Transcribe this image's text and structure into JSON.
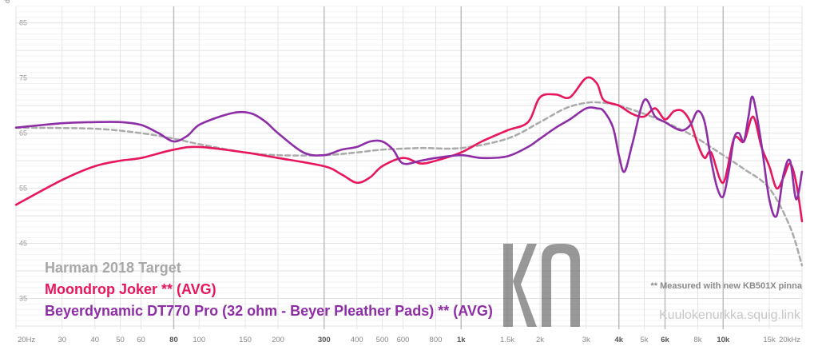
{
  "chart_data": {
    "type": "line",
    "ylabel": "dB",
    "ylim": [
      30,
      88
    ],
    "xlim": [
      20,
      20000
    ],
    "x_scale": "log",
    "y_ticks": [
      35,
      45,
      55,
      65,
      75,
      85
    ],
    "x_ticks": [
      {
        "v": 20,
        "label": "20Hz",
        "major": false
      },
      {
        "v": 30,
        "label": "30",
        "major": false
      },
      {
        "v": 40,
        "label": "40",
        "major": false
      },
      {
        "v": 50,
        "label": "50",
        "major": false
      },
      {
        "v": 60,
        "label": "60",
        "major": false
      },
      {
        "v": 80,
        "label": "80",
        "major": true
      },
      {
        "v": 100,
        "label": "100",
        "major": false
      },
      {
        "v": 150,
        "label": "150",
        "major": false
      },
      {
        "v": 200,
        "label": "200",
        "major": false
      },
      {
        "v": 300,
        "label": "300",
        "major": true
      },
      {
        "v": 400,
        "label": "400",
        "major": false
      },
      {
        "v": 500,
        "label": "500",
        "major": false
      },
      {
        "v": 600,
        "label": "600",
        "major": false
      },
      {
        "v": 800,
        "label": "800",
        "major": false
      },
      {
        "v": 1000,
        "label": "1k",
        "major": true
      },
      {
        "v": 1500,
        "label": "1.5k",
        "major": false
      },
      {
        "v": 2000,
        "label": "2k",
        "major": false
      },
      {
        "v": 3000,
        "label": "3k",
        "major": false
      },
      {
        "v": 4000,
        "label": "4k",
        "major": true
      },
      {
        "v": 5000,
        "label": "5k",
        "major": false
      },
      {
        "v": 6000,
        "label": "6k",
        "major": true
      },
      {
        "v": 8000,
        "label": "8k",
        "major": false
      },
      {
        "v": 10000,
        "label": "10k",
        "major": true
      },
      {
        "v": 15000,
        "label": "15k",
        "major": false
      },
      {
        "v": 20000,
        "label": "20kHz",
        "major": false
      }
    ],
    "series": [
      {
        "name": "Harman 2018 Target",
        "color": "#aaaaaa",
        "style": "dashed",
        "x": [
          20,
          40,
          60,
          80,
          100,
          150,
          200,
          300,
          400,
          500,
          700,
          1000,
          1500,
          2000,
          2500,
          3000,
          3500,
          4000,
          5000,
          6000,
          7000,
          8000,
          10000,
          12000,
          15000,
          18000,
          20000
        ],
        "y": [
          66.0,
          65.8,
          65.0,
          64.0,
          63.0,
          61.5,
          61.0,
          61.0,
          61.5,
          62.0,
          62.3,
          62.3,
          64.0,
          67.0,
          69.5,
          70.5,
          70.5,
          70.0,
          68.5,
          67.0,
          65.5,
          64.0,
          61.0,
          58.5,
          55.0,
          48.0,
          41.0
        ]
      },
      {
        "name": "Moondrop Joker ** (AVG)",
        "color": "#e8175d",
        "style": "solid",
        "x": [
          20,
          30,
          40,
          50,
          60,
          80,
          100,
          150,
          200,
          300,
          350,
          400,
          450,
          500,
          600,
          700,
          800,
          1000,
          1200,
          1500,
          1800,
          2000,
          2300,
          2600,
          3000,
          3300,
          3500,
          4000,
          4500,
          5000,
          5500,
          6000,
          6500,
          7000,
          7500,
          8000,
          8500,
          9000,
          10000,
          11000,
          12000,
          13000,
          14000,
          15000,
          16000,
          17000,
          18000,
          19000,
          20000
        ],
        "y": [
          52.0,
          56.5,
          59.0,
          60.0,
          60.5,
          62.0,
          62.5,
          61.5,
          60.5,
          59.0,
          57.5,
          56.0,
          57.0,
          59.0,
          60.5,
          59.5,
          60.0,
          61.5,
          63.5,
          65.5,
          67.0,
          71.5,
          72.0,
          71.5,
          75.0,
          74.0,
          71.0,
          70.0,
          68.5,
          68.0,
          69.5,
          67.5,
          69.0,
          69.0,
          67.0,
          63.0,
          60.5,
          61.5,
          56.0,
          64.0,
          63.5,
          68.0,
          62.5,
          59.0,
          55.0,
          57.0,
          59.5,
          56.0,
          49.0
        ]
      },
      {
        "name": "Beyerdynamic DT770 Pro (32 ohm - Beyer Pleather Pads) ** (AVG)",
        "color": "#8e2ea6",
        "style": "solid",
        "x": [
          20,
          30,
          40,
          50,
          60,
          70,
          80,
          90,
          100,
          120,
          140,
          160,
          180,
          200,
          250,
          300,
          350,
          400,
          450,
          500,
          550,
          600,
          700,
          800,
          1000,
          1200,
          1500,
          1800,
          2000,
          2300,
          2600,
          3000,
          3300,
          3500,
          3800,
          4000,
          4200,
          4500,
          5000,
          5500,
          6000,
          6500,
          7000,
          7500,
          8000,
          8500,
          9000,
          9500,
          10000,
          10500,
          11000,
          11500,
          12000,
          12500,
          13000,
          14000,
          15000,
          16000,
          17000,
          18000,
          19000,
          20000
        ],
        "y": [
          66.0,
          66.8,
          67.0,
          67.0,
          66.5,
          65.0,
          63.5,
          64.5,
          66.5,
          68.0,
          68.8,
          68.5,
          67.0,
          65.0,
          61.5,
          61.0,
          62.0,
          62.5,
          63.5,
          63.5,
          62.0,
          59.5,
          60.0,
          60.5,
          61.0,
          60.5,
          60.8,
          62.5,
          64.0,
          66.0,
          67.5,
          69.5,
          69.5,
          69.0,
          66.0,
          61.0,
          58.0,
          63.0,
          71.0,
          68.0,
          67.0,
          66.0,
          65.5,
          66.5,
          69.0,
          67.0,
          60.0,
          55.0,
          53.5,
          58.0,
          64.0,
          65.0,
          63.5,
          68.0,
          71.5,
          63.0,
          53.0,
          50.0,
          57.5,
          60.0,
          53.0,
          58.0
        ]
      }
    ]
  },
  "legend": {
    "harman": "Harman 2018 Target",
    "joker": "Moondrop Joker ** (AVG)",
    "dt770": "Beyerdynamic DT770 Pro (32 ohm - Beyer Pleather Pads) ** (AVG)"
  },
  "note": "** Measured with new KB501X pinna",
  "site": "Kuulokenurkka.squig.link",
  "logo_text": "KN",
  "colors": {
    "target": "#aaaaaa",
    "joker": "#e8175d",
    "dt770": "#8e2ea6",
    "grid_minor": "#e6e6e6",
    "grid_major": "#cfcfcf"
  }
}
